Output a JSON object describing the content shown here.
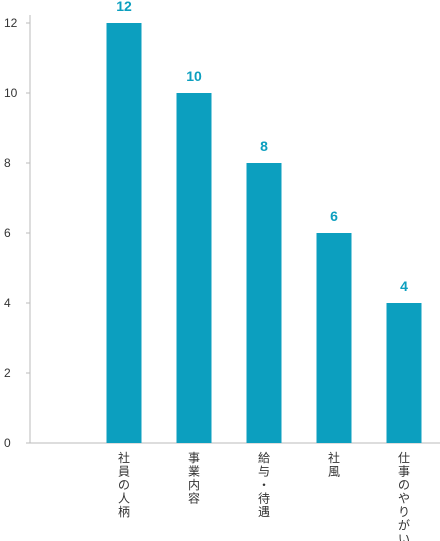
{
  "chart_data": {
    "type": "bar",
    "categories": [
      "社員の人柄",
      "事業内容",
      "給与・待遇",
      "社風",
      "仕事のやりがい"
    ],
    "values": [
      12,
      10,
      8,
      6,
      4
    ],
    "title": "",
    "xlabel": "",
    "ylabel": "",
    "ylim": [
      0,
      12
    ],
    "yticks": [
      0,
      2,
      4,
      6,
      8,
      10,
      12
    ],
    "grid": false,
    "data_labels": [
      "12",
      "10",
      "8",
      "6",
      "4"
    ]
  },
  "colors": {
    "bar": "#0c9fbf",
    "value_label": "#0c9fbf",
    "axis": "#bbbbbb"
  }
}
